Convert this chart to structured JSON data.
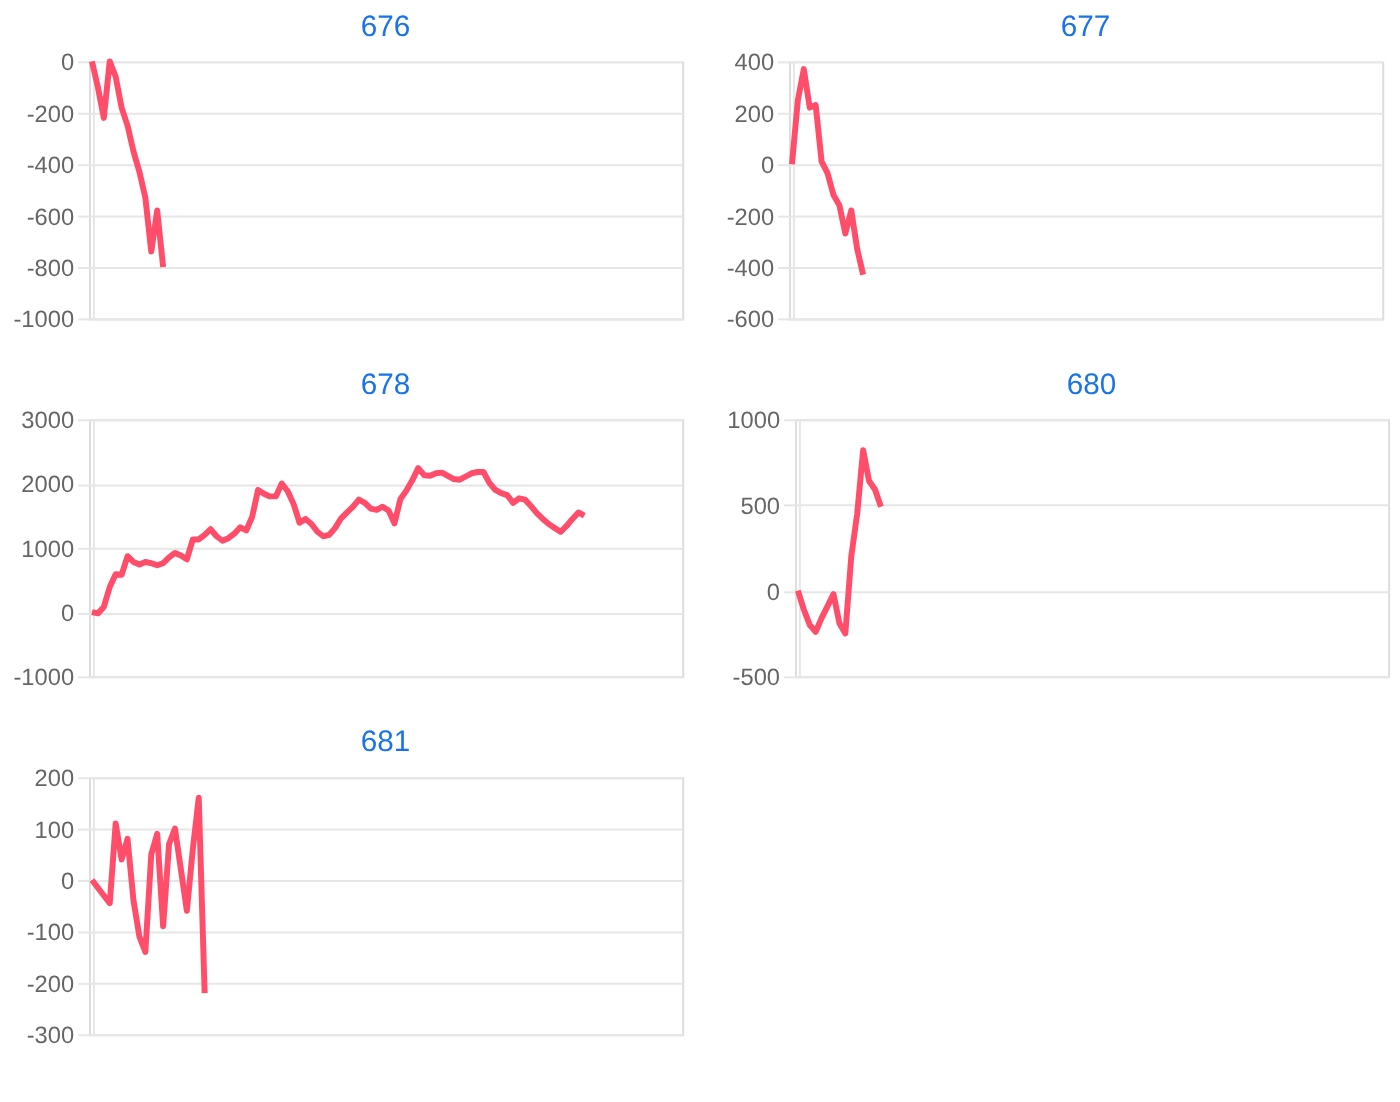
{
  "chart_data": [
    {
      "type": "line",
      "title": "676",
      "grid": true,
      "tick_labels": "y",
      "color": "#ff4d6a",
      "ylim": [
        -1000,
        0
      ],
      "yticks": [
        -1000,
        -800,
        -600,
        -400,
        -200,
        0
      ],
      "categories": [
        null,
        null,
        null,
        null,
        null,
        null,
        null,
        null,
        null,
        null,
        null,
        null,
        null,
        null,
        null,
        null,
        null,
        null,
        null,
        null,
        null,
        null,
        null,
        null,
        null,
        null,
        null,
        null,
        null,
        null,
        null,
        null,
        null,
        null,
        null,
        null,
        null,
        null,
        null,
        null,
        null,
        null,
        null,
        null,
        null,
        null,
        null,
        null,
        null,
        null,
        null,
        null,
        null,
        null,
        null,
        null,
        null,
        null,
        null,
        null,
        null,
        null,
        null,
        null,
        null,
        null,
        null,
        null,
        null,
        null,
        null,
        null,
        null,
        null,
        null,
        null,
        null,
        null,
        null,
        null,
        null,
        null,
        null,
        null,
        null,
        null,
        null,
        null,
        null,
        null,
        null,
        null,
        null,
        null,
        null,
        null,
        null,
        null,
        null,
        null
      ],
      "values": [
        0,
        -100,
        -220,
        0,
        -60,
        -180,
        -250,
        -350,
        -430,
        -530,
        -740,
        -580,
        -800,
        null,
        null,
        null,
        null,
        null,
        null,
        null,
        null,
        null,
        null,
        null,
        null,
        null,
        null,
        null,
        null,
        null,
        null,
        null,
        null,
        null,
        null,
        null,
        null,
        null,
        null,
        null,
        null,
        null,
        null,
        null,
        null,
        null,
        null,
        null,
        null,
        null,
        null,
        null,
        null,
        null,
        null,
        null,
        null,
        null,
        null,
        null,
        null,
        null,
        null,
        null,
        null,
        null,
        null,
        null,
        null,
        null,
        null,
        null,
        null,
        null,
        null,
        null,
        null,
        null,
        null,
        null,
        null,
        null,
        null,
        null,
        null,
        null,
        null,
        null,
        null,
        null,
        null,
        null,
        null,
        null,
        null,
        null,
        null,
        null,
        null,
        null
      ]
    },
    {
      "type": "line",
      "title": "677",
      "grid": true,
      "tick_labels": "y",
      "color": "#ff4d6a",
      "ylim": [
        -600,
        400
      ],
      "yticks": [
        -600,
        -400,
        -200,
        0,
        200,
        400
      ],
      "categories": [
        null,
        null,
        null,
        null,
        null,
        null,
        null,
        null,
        null,
        null,
        null,
        null,
        null,
        null,
        null,
        null,
        null,
        null,
        null,
        null,
        null,
        null,
        null,
        null,
        null,
        null,
        null,
        null,
        null,
        null,
        null,
        null,
        null,
        null,
        null,
        null,
        null,
        null,
        null,
        null,
        null,
        null,
        null,
        null,
        null,
        null,
        null,
        null,
        null,
        null,
        null,
        null,
        null,
        null,
        null,
        null,
        null,
        null,
        null,
        null,
        null,
        null,
        null,
        null,
        null,
        null,
        null,
        null,
        null,
        null,
        null,
        null,
        null,
        null,
        null,
        null,
        null,
        null,
        null,
        null,
        null,
        null,
        null,
        null,
        null,
        null,
        null,
        null,
        null,
        null,
        null,
        null,
        null,
        null,
        null,
        null,
        null,
        null,
        null,
        null
      ],
      "values": [
        0,
        250,
        370,
        220,
        230,
        10,
        -35,
        -120,
        -160,
        -270,
        -180,
        -330,
        -430,
        null,
        null,
        null,
        null,
        null,
        null,
        null,
        null,
        null,
        null,
        null,
        null,
        null,
        null,
        null,
        null,
        null,
        null,
        null,
        null,
        null,
        null,
        null,
        null,
        null,
        null,
        null,
        null,
        null,
        null,
        null,
        null,
        null,
        null,
        null,
        null,
        null,
        null,
        null,
        null,
        null,
        null,
        null,
        null,
        null,
        null,
        null,
        null,
        null,
        null,
        null,
        null,
        null,
        null,
        null,
        null,
        null,
        null,
        null,
        null,
        null,
        null,
        null,
        null,
        null,
        null,
        null,
        null,
        null,
        null,
        null,
        null,
        null,
        null,
        null,
        null,
        null,
        null,
        null,
        null,
        null,
        null,
        null,
        null,
        null,
        null,
        null
      ]
    },
    {
      "type": "line",
      "title": "678",
      "grid": true,
      "tick_labels": "y",
      "color": "#ff4d6a",
      "ylim": [
        -1000,
        3000
      ],
      "yticks": [
        -1000,
        0,
        1000,
        2000,
        3000
      ],
      "categories": [
        null,
        null,
        null,
        null,
        null,
        null,
        null,
        null,
        null,
        null,
        null,
        null,
        null,
        null,
        null,
        null,
        null,
        null,
        null,
        null,
        null,
        null,
        null,
        null,
        null,
        null,
        null,
        null,
        null,
        null,
        null,
        null,
        null,
        null,
        null,
        null,
        null,
        null,
        null,
        null,
        null,
        null,
        null,
        null,
        null,
        null,
        null,
        null,
        null,
        null,
        null,
        null,
        null,
        null,
        null,
        null,
        null,
        null,
        null,
        null,
        null,
        null,
        null,
        null,
        null,
        null,
        null,
        null,
        null,
        null,
        null,
        null,
        null,
        null,
        null,
        null,
        null,
        null,
        null,
        null,
        null,
        null,
        null,
        null,
        null,
        null,
        null,
        null,
        null,
        null,
        null,
        null,
        null,
        null,
        null,
        null,
        null,
        null,
        null,
        null
      ],
      "values": [
        0,
        -20,
        80,
        390,
        590,
        580,
        870,
        780,
        740,
        780,
        760,
        730,
        760,
        850,
        920,
        880,
        820,
        1130,
        1130,
        1200,
        1290,
        1180,
        1110,
        1150,
        1220,
        1320,
        1270,
        1480,
        1900,
        1840,
        1800,
        1800,
        2000,
        1880,
        1680,
        1390,
        1450,
        1370,
        1250,
        1180,
        1200,
        1310,
        1460,
        1550,
        1640,
        1750,
        1700,
        1610,
        1590,
        1640,
        1580,
        1380,
        1760,
        1890,
        2050,
        2240,
        2130,
        2120,
        2160,
        2170,
        2120,
        2070,
        2060,
        2110,
        2160,
        2180,
        2180,
        2010,
        1900,
        1850,
        1820,
        1700,
        1770,
        1750,
        1650,
        1540,
        1450,
        1370,
        1310,
        1250,
        1340,
        1450,
        1550,
        1500,
        null,
        null,
        null,
        null,
        null,
        null,
        null,
        null,
        null,
        null,
        null,
        null,
        null,
        null,
        null,
        null
      ]
    },
    {
      "type": "line",
      "title": "680",
      "grid": true,
      "tick_labels": "y",
      "color": "#ff4d6a",
      "ylim": [
        -500,
        1000
      ],
      "yticks": [
        -500,
        0,
        500,
        1000
      ],
      "categories": [
        null,
        null,
        null,
        null,
        null,
        null,
        null,
        null,
        null,
        null,
        null,
        null,
        null,
        null,
        null,
        null,
        null,
        null,
        null,
        null,
        null,
        null,
        null,
        null,
        null,
        null,
        null,
        null,
        null,
        null,
        null,
        null,
        null,
        null,
        null,
        null,
        null,
        null,
        null,
        null,
        null,
        null,
        null,
        null,
        null,
        null,
        null,
        null,
        null,
        null,
        null,
        null,
        null,
        null,
        null,
        null,
        null,
        null,
        null,
        null,
        null,
        null,
        null,
        null,
        null,
        null,
        null,
        null,
        null,
        null,
        null,
        null,
        null,
        null,
        null,
        null,
        null,
        null,
        null,
        null,
        null,
        null,
        null,
        null,
        null,
        null,
        null,
        null,
        null,
        null,
        null,
        null,
        null,
        null,
        null,
        null,
        null,
        null,
        null,
        null
      ],
      "values": [
        0,
        -110,
        -200,
        -240,
        -160,
        -90,
        -20,
        -190,
        -250,
        200,
        450,
        820,
        640,
        590,
        490,
        null,
        null,
        null,
        null,
        null,
        null,
        null,
        null,
        null,
        null,
        null,
        null,
        null,
        null,
        null,
        null,
        null,
        null,
        null,
        null,
        null,
        null,
        null,
        null,
        null,
        null,
        null,
        null,
        null,
        null,
        null,
        null,
        null,
        null,
        null,
        null,
        null,
        null,
        null,
        null,
        null,
        null,
        null,
        null,
        null,
        null,
        null,
        null,
        null,
        null,
        null,
        null,
        null,
        null,
        null,
        null,
        null,
        null,
        null,
        null,
        null,
        null,
        null,
        null,
        null,
        null,
        null,
        null,
        null,
        null,
        null,
        null,
        null,
        null,
        null,
        null,
        null,
        null,
        null,
        null,
        null,
        null,
        null,
        null,
        null
      ]
    },
    {
      "type": "line",
      "title": "681",
      "grid": true,
      "tick_labels": "y",
      "color": "#ff4d6a",
      "ylim": [
        -300,
        200
      ],
      "yticks": [
        -300,
        -200,
        -100,
        0,
        100,
        200
      ],
      "categories": [
        null,
        null,
        null,
        null,
        null,
        null,
        null,
        null,
        null,
        null,
        null,
        null,
        null,
        null,
        null,
        null,
        null,
        null,
        null,
        null,
        null,
        null,
        null,
        null,
        null,
        null,
        null,
        null,
        null,
        null,
        null,
        null,
        null,
        null,
        null,
        null,
        null,
        null,
        null,
        null,
        null,
        null,
        null,
        null,
        null,
        null,
        null,
        null,
        null,
        null,
        null,
        null,
        null,
        null,
        null,
        null,
        null,
        null,
        null,
        null,
        null,
        null,
        null,
        null,
        null,
        null,
        null,
        null,
        null,
        null,
        null,
        null,
        null,
        null,
        null,
        null,
        null,
        null,
        null,
        null,
        null,
        null,
        null,
        null,
        null,
        null,
        null,
        null,
        null,
        null,
        null,
        null,
        null,
        null,
        null,
        null,
        null,
        null,
        null,
        null
      ],
      "values": [
        0,
        -15,
        -30,
        -45,
        110,
        40,
        80,
        -40,
        -110,
        -140,
        50,
        90,
        -90,
        70,
        100,
        20,
        -60,
        60,
        160,
        -220,
        null,
        null,
        null,
        null,
        null,
        null,
        null,
        null,
        null,
        null,
        null,
        null,
        null,
        null,
        null,
        null,
        null,
        null,
        null,
        null,
        null,
        null,
        null,
        null,
        null,
        null,
        null,
        null,
        null,
        null,
        null,
        null,
        null,
        null,
        null,
        null,
        null,
        null,
        null,
        null,
        null,
        null,
        null,
        null,
        null,
        null,
        null,
        null,
        null,
        null,
        null,
        null,
        null,
        null,
        null,
        null,
        null,
        null,
        null,
        null,
        null,
        null,
        null,
        null,
        null,
        null,
        null,
        null,
        null,
        null,
        null,
        null,
        null,
        null,
        null,
        null,
        null,
        null,
        null,
        null
      ]
    }
  ]
}
